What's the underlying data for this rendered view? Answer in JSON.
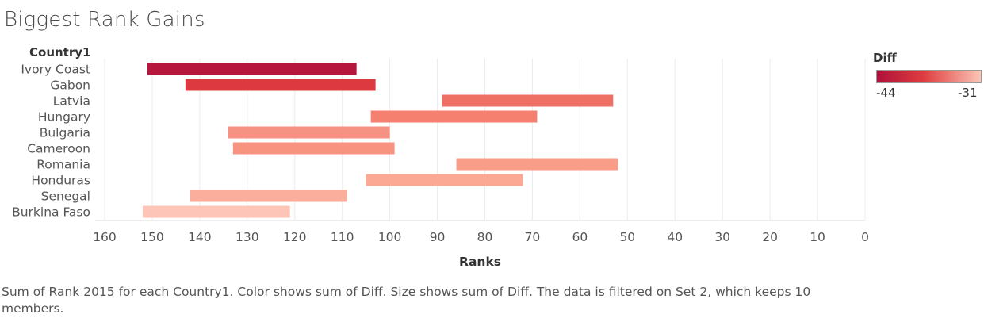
{
  "title": "Biggest Rank Gains",
  "legend": {
    "title": "Diff",
    "min_label": "-44",
    "max_label": "-31",
    "color_low": "#b0103a",
    "color_mid": "#e03c3f",
    "color_high": "#fbc6b7"
  },
  "caption": "Sum of Rank 2015 for each Country1.  Color shows sum of Diff.  Size shows sum of Diff. The data is filtered on Set 2, which keeps 10 members.",
  "chart_data": {
    "type": "bar",
    "ylabel": "Country1",
    "xlabel": "Ranks",
    "xlim": [
      162,
      0
    ],
    "x_reversed": true,
    "x_ticks": [
      160,
      150,
      140,
      130,
      120,
      110,
      100,
      90,
      80,
      70,
      60,
      50,
      40,
      30,
      20,
      10,
      0
    ],
    "grid": true,
    "legend_position": "top-right",
    "categories": [
      "Ivory Coast",
      "Gabon",
      "Latvia",
      "Hungary",
      "Bulgaria",
      "Cameroon",
      "Romania",
      "Honduras",
      "Senegal",
      "Burkina Faso"
    ],
    "series": [
      {
        "start": [
          151,
          143,
          89,
          104,
          134,
          133,
          86,
          105,
          142,
          152
        ],
        "end": [
          107,
          103,
          53,
          69,
          100,
          99,
          52,
          72,
          109,
          121
        ]
      }
    ],
    "colors": [
      "#b5173d",
      "#dc3a40",
      "#ee7064",
      "#f5806f",
      "#f69283",
      "#f7937f",
      "#f99d89",
      "#fba995",
      "#fbae9b",
      "#fcc5b8"
    ]
  }
}
